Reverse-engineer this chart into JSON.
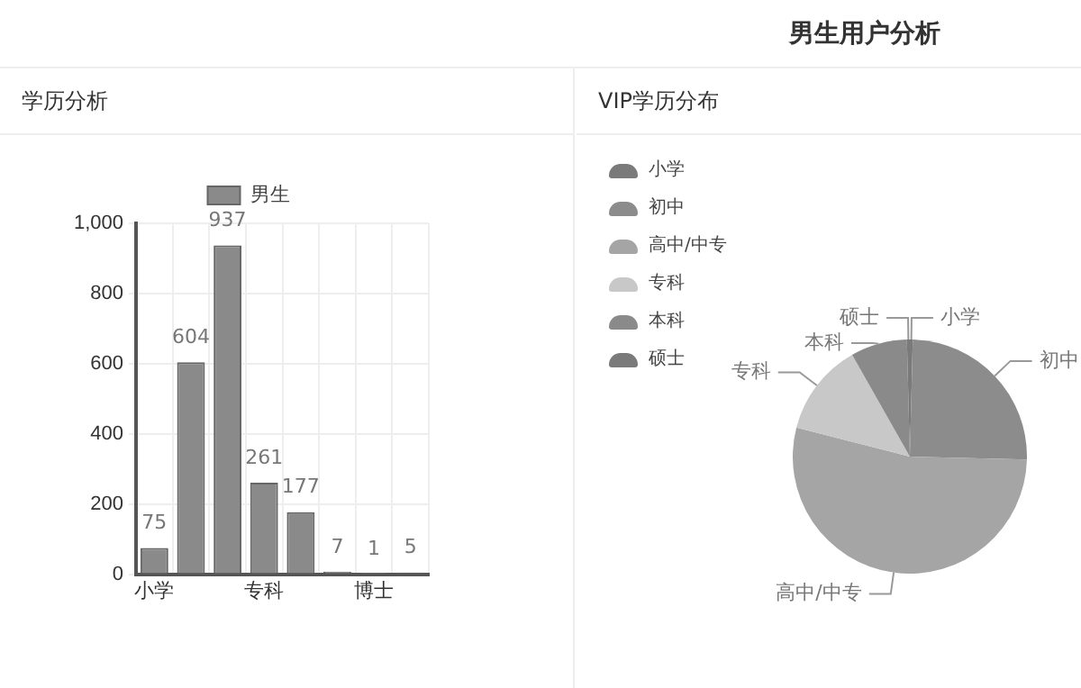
{
  "chart_data": [
    {
      "type": "bar",
      "title": "学历分析",
      "categories": [
        "小学",
        null,
        null,
        "专科",
        null,
        null,
        "博士",
        null
      ],
      "series": [
        {
          "name": "男生",
          "color": "#8a8a8a",
          "values": [
            75,
            604,
            937,
            261,
            177,
            7,
            1,
            5
          ]
        }
      ],
      "ylim": [
        0,
        1000
      ],
      "yticks": [
        0,
        200,
        400,
        600,
        800,
        {
          "value": 1000,
          "label": "1,000"
        }
      ],
      "grid": true,
      "legend": "top",
      "data_labels": true
    },
    {
      "type": "pie",
      "title": "VIP学历分布",
      "annotations": [
        "男生用户分析"
      ],
      "categories": [
        "小学",
        "初中",
        "高中/中专",
        "专科",
        "本科",
        "硕士"
      ],
      "values": [
        0.4,
        25,
        53.6,
        12.8,
        7.8,
        0.4
      ],
      "colors": [
        "#7a7a7a",
        "#8c8c8c",
        "#a5a5a5",
        "#c8c8c8",
        "#8a8a8a",
        "#7a7a7a"
      ],
      "legend": "top left"
    }
  ]
}
